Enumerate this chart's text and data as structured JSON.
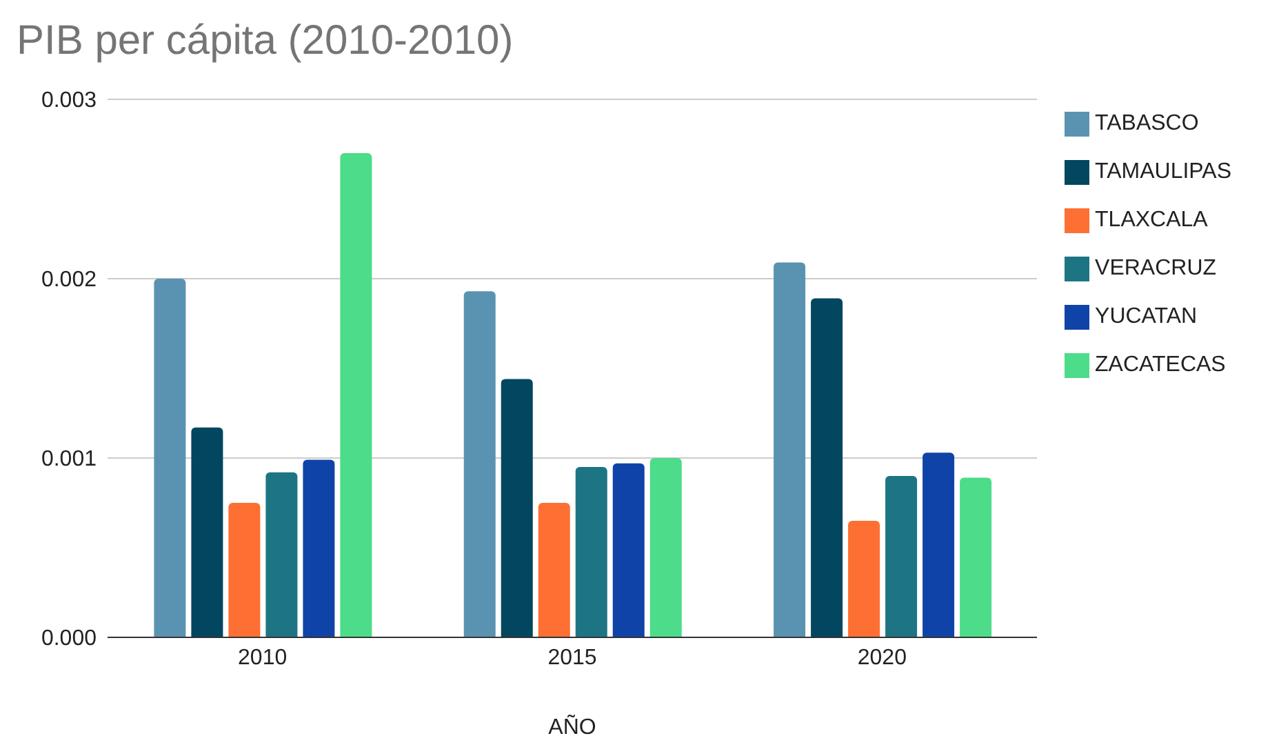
{
  "chart_data": {
    "type": "bar",
    "title": "PIB per cápita (2010-2010)",
    "xlabel": "AÑO",
    "categories": [
      "2010",
      "2015",
      "2020"
    ],
    "series": [
      {
        "name": "TABASCO",
        "color": "#5a93b1",
        "values": [
          0.002,
          0.00193,
          0.00209
        ]
      },
      {
        "name": "TAMAULIPAS",
        "color": "#02465f",
        "values": [
          0.00117,
          0.00144,
          0.00189
        ]
      },
      {
        "name": "TLAXCALA",
        "color": "#fe6f33",
        "values": [
          0.00075,
          0.00075,
          0.00065
        ]
      },
      {
        "name": "VERACRUZ",
        "color": "#1d7584",
        "values": [
          0.00092,
          0.00095,
          0.0009
        ]
      },
      {
        "name": "YUCATAN",
        "color": "#1043a8",
        "values": [
          0.00099,
          0.00097,
          0.00103
        ]
      },
      {
        "name": "ZACATECAS",
        "color": "#4ddc8a",
        "values": [
          0.0027,
          0.001,
          0.00089
        ]
      }
    ],
    "ylim": [
      0,
      0.003
    ],
    "yticks": [
      {
        "value": 0,
        "label": "0.000"
      },
      {
        "value": 0.001,
        "label": "0.001"
      },
      {
        "value": 0.002,
        "label": "0.002"
      },
      {
        "value": 0.003,
        "label": "0.003"
      }
    ],
    "grid": "y",
    "legend": "right"
  }
}
